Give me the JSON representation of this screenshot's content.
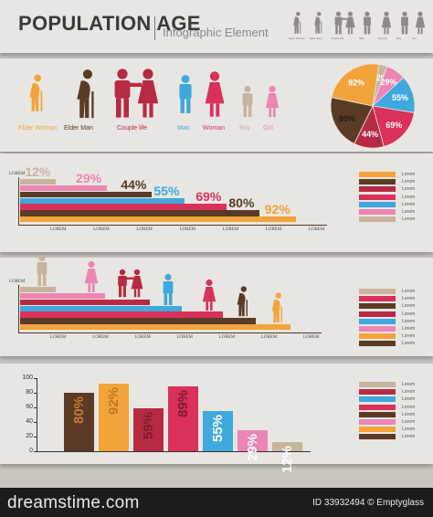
{
  "header": {
    "title": "POPULATION AGE",
    "subtitle": "Infographic Element",
    "mini_labels": [
      "Elder Woman",
      "Elder Man",
      "Couple life",
      "Man",
      "Woman",
      "Boy",
      "Girl"
    ]
  },
  "colors": {
    "elder_woman": "#f2a33a",
    "elder_man": "#5a3b26",
    "couple": "#b72a44",
    "man": "#3fa8dc",
    "woman": "#d9315c",
    "boy": "#c7b49e",
    "girl": "#ec85b4",
    "text_dark": "#3a3a3a"
  },
  "people": [
    {
      "label": "Elder Woman",
      "icon": "elder-woman-icon",
      "color": "#f2a33a"
    },
    {
      "label": "Elder Man",
      "icon": "elder-man-icon",
      "color": "#5a3b26"
    },
    {
      "label": "Couple life",
      "icon": "couple-icon",
      "color": "#b72a44"
    },
    {
      "label": "Man",
      "icon": "man-icon",
      "color": "#3fa8dc"
    },
    {
      "label": "Woman",
      "icon": "woman-icon",
      "color": "#d9315c"
    },
    {
      "label": "Boy",
      "icon": "boy-icon",
      "color": "#c7b49e"
    },
    {
      "label": "Girl",
      "icon": "girl-icon",
      "color": "#ec85b4"
    }
  ],
  "axis_label": "LOREM",
  "legend_label": "Lorem",
  "chart_data": [
    {
      "type": "pie",
      "slices": [
        {
          "value": 12,
          "label": "12%",
          "color": "#c7b49e"
        },
        {
          "value": 29,
          "label": "29%",
          "color": "#ec85b4"
        },
        {
          "value": 55,
          "label": "55%",
          "color": "#3fa8dc"
        },
        {
          "value": 69,
          "label": "69%",
          "color": "#d9315c"
        },
        {
          "value": 44,
          "label": "44%",
          "color": "#b72a44"
        },
        {
          "value": 80,
          "label": "80%",
          "color": "#5a3b26"
        },
        {
          "value": 92,
          "label": "92%",
          "color": "#f2a33a"
        }
      ]
    },
    {
      "type": "bar",
      "orientation": "horizontal",
      "series": [
        {
          "value": 12,
          "label": "12%",
          "color": "#c7b49e"
        },
        {
          "value": 29,
          "label": "29%",
          "color": "#ec85b4"
        },
        {
          "value": 44,
          "label": "44%",
          "color": "#5a3b26"
        },
        {
          "value": 55,
          "label": "55%",
          "color": "#3fa8dc"
        },
        {
          "value": 69,
          "label": "69%",
          "color": "#d9315c"
        },
        {
          "value": 80,
          "label": "80%",
          "color": "#5a3b26"
        },
        {
          "value": 92,
          "label": "92%",
          "color": "#f2a33a"
        }
      ],
      "ticks": [
        "LOREM",
        "LOREM",
        "LOREM",
        "LOREM",
        "LOREM",
        "LOREM",
        "LOREM"
      ],
      "legend": [
        "Lorem",
        "Lorem",
        "Lorem",
        "Lorem",
        "Lorem",
        "Lorem",
        "Lorem"
      ],
      "legend_colors": [
        "#f2a33a",
        "#5a3b26",
        "#b72a44",
        "#d9315c",
        "#3fa8dc",
        "#ec85b4",
        "#c7b49e"
      ],
      "xlim": [
        0,
        100
      ]
    },
    {
      "type": "bar",
      "orientation": "horizontal",
      "series": [
        {
          "value": 12,
          "color": "#c7b49e",
          "icon": "boy-icon"
        },
        {
          "value": 29,
          "color": "#ec85b4",
          "icon": "girl-icon"
        },
        {
          "value": 44,
          "color": "#b72a44",
          "icon": "couple-icon"
        },
        {
          "value": 55,
          "color": "#3fa8dc",
          "icon": "man-icon"
        },
        {
          "value": 69,
          "color": "#d9315c",
          "icon": "woman-icon"
        },
        {
          "value": 80,
          "color": "#5a3b26",
          "icon": "elder-man-icon"
        },
        {
          "value": 92,
          "color": "#f2a33a",
          "icon": "elder-woman-icon"
        }
      ],
      "ticks": [
        "LOREM",
        "LOREM",
        "LOREM",
        "LOREM",
        "LOREM",
        "LOREM",
        "LOREM"
      ],
      "legend": [
        "Lorem",
        "Lorem",
        "Lorem",
        "Lorem",
        "Lorem",
        "Lorem",
        "Lorem",
        "Lorem"
      ],
      "legend_colors": [
        "#c7b49e",
        "#d9315c",
        "#5a3b26",
        "#b72a44",
        "#3fa8dc",
        "#ec85b4",
        "#f2a33a",
        "#5a3b26"
      ],
      "xlim": [
        0,
        100
      ]
    },
    {
      "type": "bar",
      "orientation": "vertical",
      "categories": [
        "80%",
        "92%",
        "59%",
        "89%",
        "55%",
        "29%",
        "12%"
      ],
      "series": [
        {
          "value": 80,
          "label": "80%",
          "color": "#5a3b26"
        },
        {
          "value": 92,
          "label": "92%",
          "color": "#f2a33a"
        },
        {
          "value": 59,
          "label": "59%",
          "color": "#b72a44"
        },
        {
          "value": 89,
          "label": "89%",
          "color": "#d9315c"
        },
        {
          "value": 55,
          "label": "55%",
          "color": "#3fa8dc"
        },
        {
          "value": 29,
          "label": "29%",
          "color": "#ec85b4"
        },
        {
          "value": 12,
          "label": "12%",
          "color": "#c7b49e"
        }
      ],
      "yticks": [
        "100",
        "80",
        "60",
        "40",
        "20",
        "0"
      ],
      "ylim": [
        0,
        100
      ],
      "legend": [
        "Lorem",
        "Lorem",
        "Lorem",
        "Lorem",
        "Lorem",
        "Lorem",
        "Lorem",
        "Lorem"
      ],
      "legend_colors": [
        "#c7b49e",
        "#b72a44",
        "#3fa8dc",
        "#d9315c",
        "#5a3b26",
        "#ec85b4",
        "#f2a33a",
        "#5a3b26"
      ]
    }
  ],
  "footer": {
    "brand": "dreamstime.com",
    "id_text": "ID 33932494 © Emptyglass"
  }
}
